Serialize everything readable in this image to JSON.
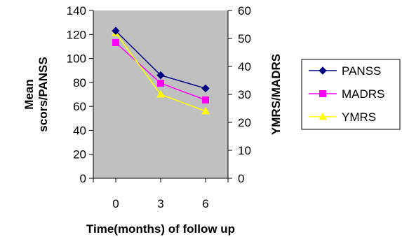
{
  "chart_data": {
    "type": "line",
    "categories": [
      "0",
      "3",
      "6"
    ],
    "x": [
      0,
      3,
      6
    ],
    "xlabel": "Time(months) of follow up",
    "ylabel_left": [
      "Mean",
      "scors/PANSS"
    ],
    "ylabel_right": "YMRS/MADRS",
    "ylim_left": [
      0,
      140
    ],
    "yticks_left": [
      "0",
      "20",
      "40",
      "60",
      "80",
      "100",
      "120",
      "140"
    ],
    "ylim_right": [
      0,
      60
    ],
    "yticks_right": [
      "0",
      "10",
      "20",
      "30",
      "40",
      "50",
      "60"
    ],
    "plot_background": "#C0C0C0",
    "grid": false,
    "legend_position": "right",
    "series": [
      {
        "name": "PANSS",
        "axis": "left",
        "values": [
          123,
          86,
          75
        ],
        "color": "#000080",
        "marker": "diamond"
      },
      {
        "name": "MADRS",
        "axis": "right",
        "values": [
          48.5,
          34,
          28
        ],
        "color": "#FF00FF",
        "marker": "square"
      },
      {
        "name": "YMRS",
        "axis": "right",
        "values": [
          52,
          30,
          24
        ],
        "color": "#FFFF00",
        "marker": "triangle"
      }
    ]
  }
}
